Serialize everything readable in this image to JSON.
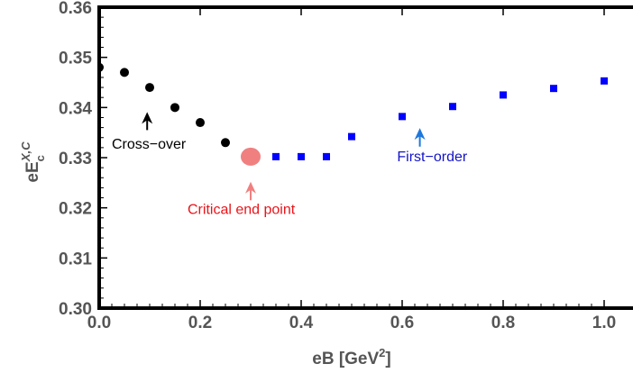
{
  "chart_data": {
    "type": "scatter",
    "xlabel": "eB [GeV2]",
    "ylabel": "eEcX,C",
    "xlim": [
      0,
      1.0
    ],
    "ylim": [
      0.3,
      0.36
    ],
    "x_ticks": [
      "0.0",
      "0.2",
      "0.4",
      "0.6",
      "0.8",
      "1.0"
    ],
    "y_ticks": [
      "0.30",
      "0.31",
      "0.32",
      "0.33",
      "0.34",
      "0.35",
      "0.36"
    ],
    "series": [
      {
        "marker": "circle",
        "color": "#000000",
        "x": [
          0.0,
          0.05,
          0.1,
          0.15,
          0.2,
          0.25
        ],
        "y": [
          0.348,
          0.347,
          0.344,
          0.34,
          0.337,
          0.333
        ]
      },
      {
        "marker": "circle-large",
        "color": "#f08080",
        "x": [
          0.3
        ],
        "y": [
          0.3302
        ]
      },
      {
        "marker": "square",
        "color": "#0000ff",
        "x": [
          0.35,
          0.4,
          0.45,
          0.5,
          0.6,
          0.7,
          0.8,
          0.9,
          1.0
        ],
        "y": [
          0.3302,
          0.3302,
          0.3302,
          0.3342,
          0.3382,
          0.3402,
          0.3425,
          0.3438,
          0.3453
        ]
      }
    ],
    "annotations": [
      {
        "text": "Cross−over",
        "color": "#000000",
        "arrow_color": "#000000",
        "arrow_from": [
          0.095,
          0.3355
        ],
        "arrow_to": [
          0.095,
          0.3391
        ],
        "text_at": [
          0.025,
          0.3318
        ]
      },
      {
        "text": "Critical end point",
        "color": "#e8141a",
        "arrow_color": "#f08080",
        "arrow_from": [
          0.3,
          0.3215
        ],
        "arrow_to": [
          0.3,
          0.3252
        ],
        "text_at": [
          0.175,
          0.3188
        ]
      },
      {
        "text": "First−order",
        "color": "#1414c8",
        "arrow_color": "#1e78dc",
        "arrow_from": [
          0.635,
          0.3322
        ],
        "arrow_to": [
          0.635,
          0.3359
        ],
        "text_at": [
          0.59,
          0.3293
        ]
      }
    ]
  }
}
